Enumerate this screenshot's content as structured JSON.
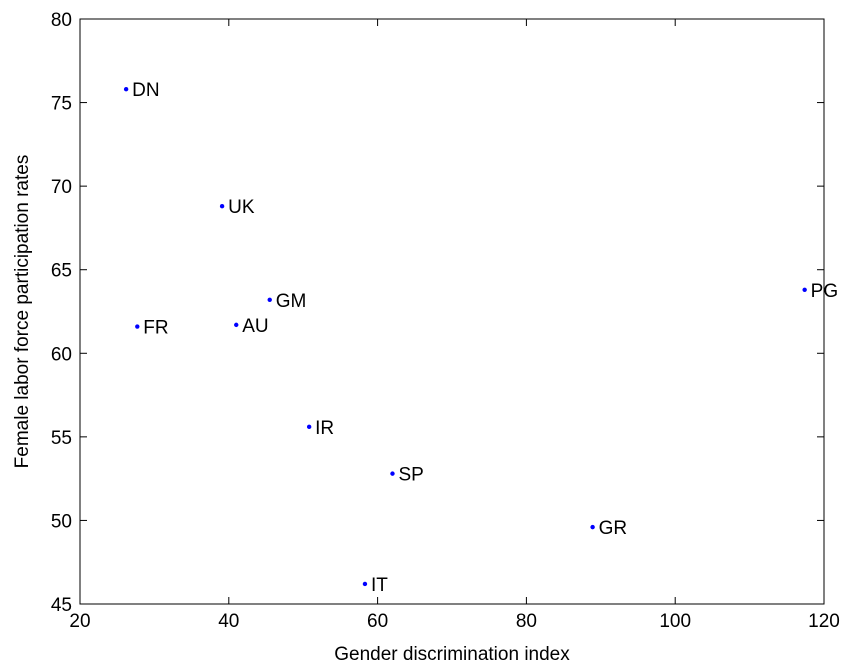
{
  "chart_data": {
    "type": "scatter",
    "title": "",
    "xlabel": "Gender discrimination index",
    "ylabel": "Female labor force participation rates",
    "xlim": [
      20,
      120
    ],
    "ylim": [
      45,
      80
    ],
    "xticks": [
      20,
      40,
      60,
      80,
      100,
      120
    ],
    "yticks": [
      45,
      50,
      55,
      60,
      65,
      70,
      75,
      80
    ],
    "grid": false,
    "marker_color": "#0000ff",
    "points": [
      {
        "label": "DN",
        "x": 26.2,
        "y": 75.8
      },
      {
        "label": "UK",
        "x": 39.1,
        "y": 68.8
      },
      {
        "label": "PG",
        "x": 117.4,
        "y": 63.8
      },
      {
        "label": "GM",
        "x": 45.5,
        "y": 63.2
      },
      {
        "label": "FR",
        "x": 27.7,
        "y": 61.6
      },
      {
        "label": "AU",
        "x": 41.0,
        "y": 61.7
      },
      {
        "label": "IR",
        "x": 50.8,
        "y": 55.6
      },
      {
        "label": "SP",
        "x": 62.0,
        "y": 52.8
      },
      {
        "label": "GR",
        "x": 88.9,
        "y": 49.6
      },
      {
        "label": "IT",
        "x": 58.3,
        "y": 46.2
      }
    ]
  }
}
